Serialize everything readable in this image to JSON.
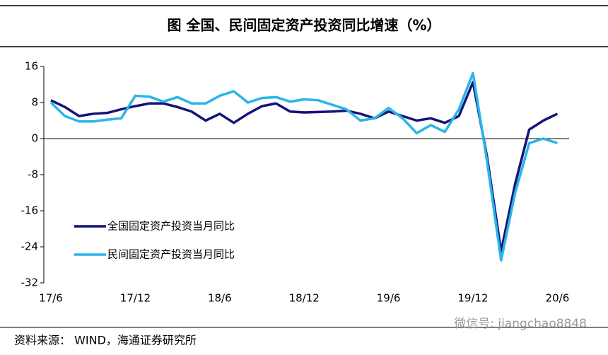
{
  "chart_data": {
    "type": "line",
    "title": "图    全国、民间固定资产投资同比增速（%）",
    "categories": [
      "17/6",
      null,
      null,
      null,
      null,
      null,
      "17/12",
      null,
      null,
      null,
      null,
      null,
      "18/6",
      null,
      null,
      null,
      null,
      null,
      "18/12",
      null,
      null,
      null,
      null,
      null,
      "19/6",
      null,
      null,
      null,
      null,
      null,
      "19/12",
      null,
      null,
      null,
      null,
      null,
      "20/6"
    ],
    "series": [
      {
        "name": "全国固定资产投资当月同比",
        "color": "#14137a",
        "values": [
          8.5,
          7.0,
          5.0,
          5.5,
          5.7,
          6.5,
          7.2,
          7.8,
          7.8,
          7.0,
          6.0,
          4.0,
          5.5,
          3.5,
          5.5,
          7.2,
          7.8,
          6.0,
          5.8,
          5.9,
          6.0,
          6.2,
          5.5,
          4.5,
          6.0,
          5.0,
          4.0,
          4.5,
          3.5,
          5.0,
          12.5,
          -4.0,
          -25.0,
          -10.0,
          2.0,
          4.0,
          5.5
        ]
      },
      {
        "name": "民间固定资产投资当月同比",
        "color": "#29b5e8",
        "values": [
          8.0,
          5.0,
          3.8,
          3.8,
          4.2,
          4.5,
          9.5,
          9.3,
          8.2,
          9.2,
          7.8,
          7.8,
          9.5,
          10.5,
          8.0,
          9.0,
          9.2,
          8.2,
          8.7,
          8.5,
          7.5,
          6.5,
          4.0,
          4.5,
          6.8,
          4.5,
          1.2,
          3.0,
          1.5,
          6.5,
          14.5,
          -5.0,
          -27.0,
          -12.0,
          -1.0,
          0.0,
          -1.0
        ]
      }
    ],
    "ylim": [
      -32,
      16
    ],
    "yticks": [
      16,
      8,
      0,
      -8,
      -16,
      -24,
      -32
    ],
    "legend": "lower-left",
    "source": "资料来源：   WIND，海通证券研究所",
    "watermark": "微信号: jiangchao8848"
  }
}
